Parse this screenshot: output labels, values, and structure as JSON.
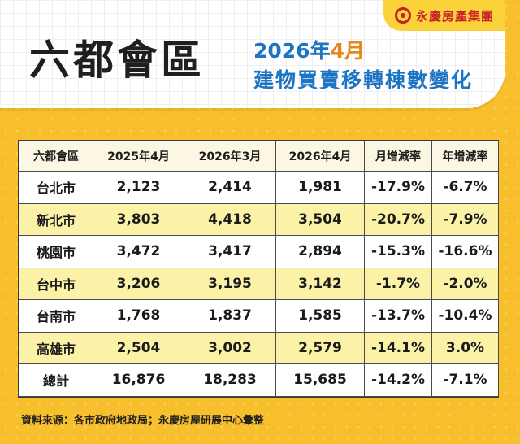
{
  "brand": {
    "name": "永慶房產集團"
  },
  "header": {
    "title": "六都會區",
    "subtitle_date_prefix": "2026年",
    "subtitle_date_month": "4月",
    "subtitle_line2": "建物買賣移轉棟數變化"
  },
  "chart_data": {
    "type": "table",
    "columns": [
      "六都會區",
      "2025年4月",
      "2026年3月",
      "2026年4月",
      "月增減率",
      "年增減率"
    ],
    "rows": [
      [
        "台北市",
        "2,123",
        "2,414",
        "1,981",
        "-17.9%",
        "-6.7%"
      ],
      [
        "新北市",
        "3,803",
        "4,418",
        "3,504",
        "-20.7%",
        "-7.9%"
      ],
      [
        "桃園市",
        "3,472",
        "3,417",
        "2,894",
        "-15.3%",
        "-16.6%"
      ],
      [
        "台中市",
        "3,206",
        "3,195",
        "3,142",
        "-1.7%",
        "-2.0%"
      ],
      [
        "台南市",
        "1,768",
        "1,837",
        "1,585",
        "-13.7%",
        "-10.4%"
      ],
      [
        "高雄市",
        "2,504",
        "3,002",
        "2,579",
        "-14.1%",
        "3.0%"
      ],
      [
        "總計",
        "16,876",
        "18,283",
        "15,685",
        "-14.2%",
        "-7.1%"
      ]
    ]
  },
  "footer": {
    "source": "資料來源：各市政府地政局；永慶房屋研展中心彙整"
  },
  "colors": {
    "background": "#f8bf2c",
    "title_blue": "#1d74c4",
    "title_orange": "#e8861c",
    "brand_red": "#c8202a",
    "row_alt": "#fbf2a8"
  }
}
